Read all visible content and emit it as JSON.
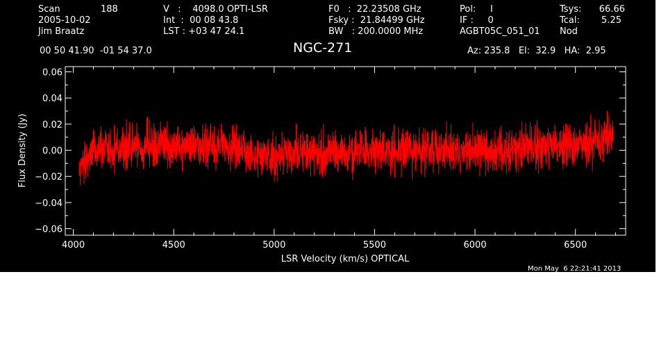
{
  "header": {
    "scan_label": "Scan",
    "scan_number": "188",
    "date": "2005-10-02",
    "observer": "Jim Braatz",
    "velocity": "V   :    4098.0 OPTI-LSR",
    "integration": "Int  :  00 08 43.8",
    "lst": "LST : +03 47 24.1",
    "f0": "F0   :  22.23508 GHz",
    "fsky": "Fsky :  21.84499 GHz",
    "bw": "BW   : 200.0000 MHz",
    "pol": "Pol:     I",
    "if": "IF :     0",
    "project": "AGBT05C_051_01",
    "tsys_label": "Tsys:",
    "tsys_value": "66.66",
    "tcal_label": "Tcal:",
    "tcal_value": "5.25",
    "mode": "Nod",
    "coordinates": "00 50 41.90  -01 54 37.0",
    "source": "NGC-271",
    "pointing": "Az: 235.8   El:  32.9   HA:  2.95",
    "timestamp": "Mon May  6 22:21:41 2013"
  },
  "colors": {
    "background": "#000000",
    "axes": "#ffffff",
    "series": "#ff0000"
  },
  "chart_data": {
    "type": "line",
    "title": "NGC-271",
    "xlabel": "LSR Velocity (km/s) OPTICAL",
    "ylabel": "Flux Density (Jy)",
    "xlim": [
      3960,
      6750
    ],
    "ylim": [
      -0.065,
      0.064
    ],
    "xticks": [
      4000,
      4500,
      5000,
      5500,
      6000,
      6500
    ],
    "xtick_labels": [
      "4000",
      "4500",
      "5000",
      "5500",
      "6000",
      "6500"
    ],
    "yticks": [
      -0.06,
      -0.04,
      -0.02,
      0.0,
      0.02,
      0.04,
      0.06
    ],
    "ytick_labels": [
      "−0.06",
      "−0.04",
      "−0.02",
      "0.00",
      "0.02",
      "0.04",
      "0.06"
    ],
    "series": [
      {
        "color": "#ff0000",
        "x": [
          4030,
          4050,
          4075,
          4100,
          4150,
          4200,
          4300,
          4400,
          4500,
          4600,
          4700,
          4800,
          4900,
          5000,
          5100,
          5200,
          5300,
          5400,
          5500,
          5600,
          5700,
          5800,
          5900,
          6000,
          6100,
          6200,
          6300,
          6400,
          6500,
          6550,
          6600,
          6650,
          6690
        ],
        "y": [
          -0.015,
          -0.008,
          -0.004,
          0.0,
          0.003,
          0.002,
          0.004,
          0.003,
          0.002,
          0.003,
          0.002,
          0.001,
          -0.002,
          -0.004,
          -0.002,
          -0.001,
          -0.002,
          -0.001,
          -0.001,
          0.0,
          0.0,
          0.0,
          0.0,
          0.001,
          0.0,
          0.001,
          0.002,
          0.004,
          0.004,
          0.005,
          0.007,
          0.01,
          0.016
        ],
        "noise_rms": 0.008
      }
    ]
  }
}
